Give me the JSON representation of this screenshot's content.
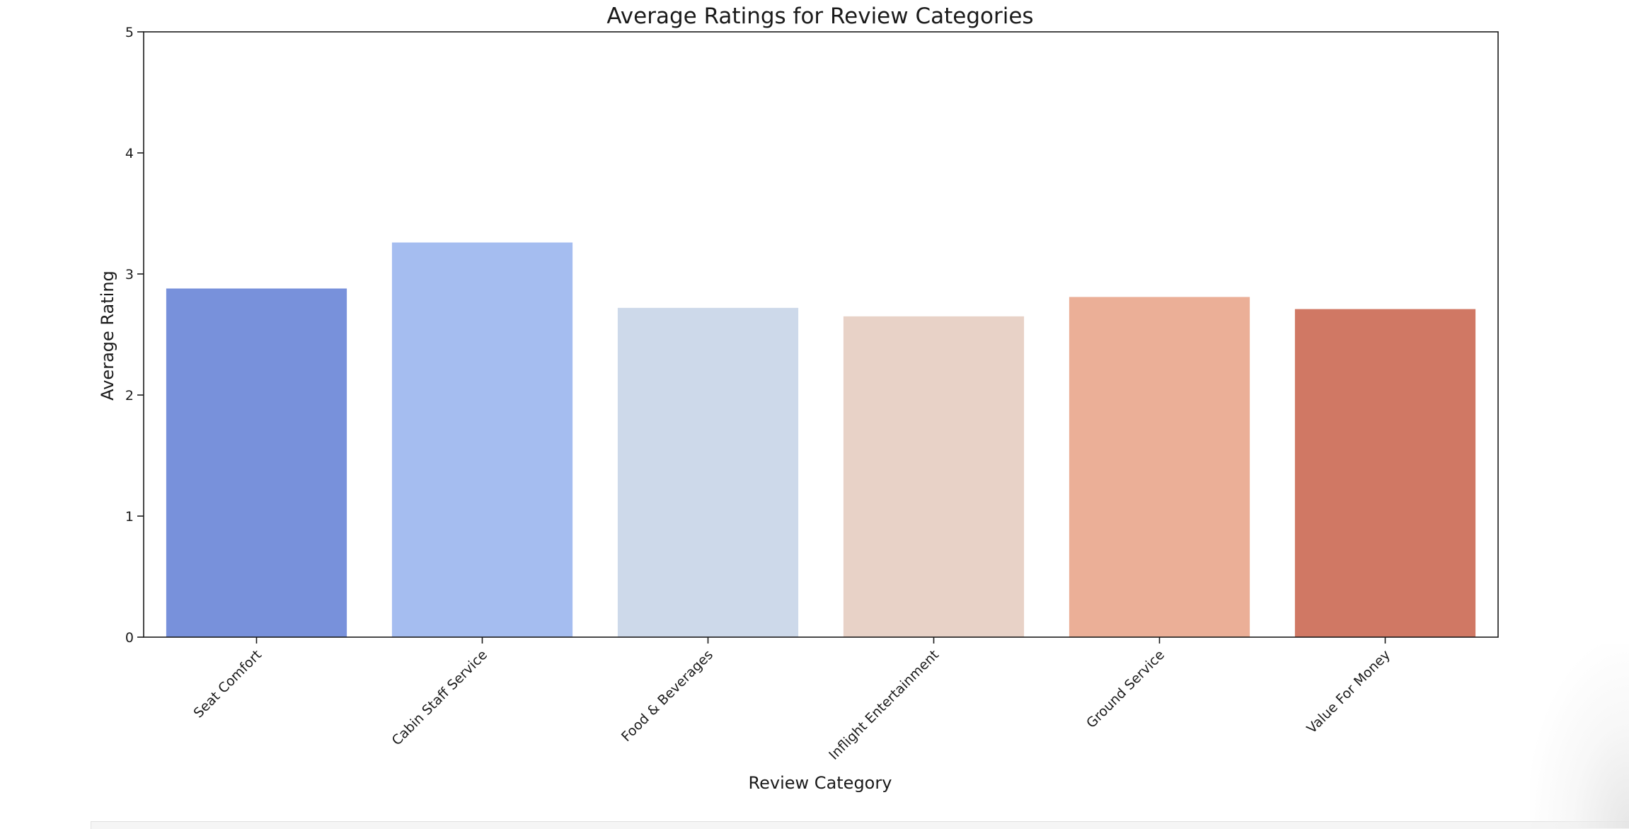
{
  "chart_data": {
    "type": "bar",
    "title": "Average Ratings for Review Categories",
    "xlabel": "Review Category",
    "ylabel": "Average Rating",
    "categories": [
      "Seat Comfort",
      "Cabin Staff Service",
      "Food & Beverages",
      "Inflight Entertainment",
      "Ground Service",
      "Value For Money"
    ],
    "values": [
      2.88,
      3.26,
      2.72,
      2.65,
      2.81,
      2.71
    ],
    "colors": [
      "#7891db",
      "#a5bdf0",
      "#cdd9ea",
      "#e8d2c7",
      "#ebaf97",
      "#d07864"
    ],
    "ylim": [
      0,
      5
    ],
    "yticks": [
      "0",
      "1",
      "2",
      "3",
      "4",
      "5"
    ],
    "grid": false,
    "legend": "none"
  }
}
